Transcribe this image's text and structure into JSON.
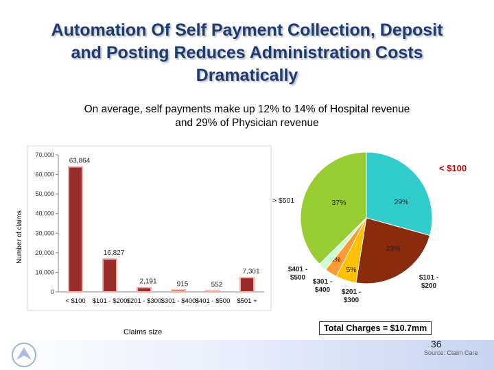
{
  "title_lines": [
    "Automation Of Self Payment Collection, Deposit",
    "and Posting Reduces Administration Costs",
    "Dramatically"
  ],
  "subtitle_lines": [
    "On average, self payments make up 12% to 14% of Hospital revenue",
    "and 29% of Physician revenue"
  ],
  "total_charges": "Total Charges = $10.7mm",
  "page_number": "36",
  "source": "Source: Claim Care",
  "colors": {
    "title": "#1f3b6e",
    "bar": "#9b2c2c",
    "highlight": "#cc0000"
  },
  "chart_data": [
    {
      "type": "bar",
      "categories": [
        "< $100",
        "$101 - $200",
        "$201 - $300",
        "$301 - $400",
        "$401 - $500",
        "$501 +"
      ],
      "values": [
        63864,
        16827,
        2191,
        915,
        552,
        7301
      ],
      "value_labels": [
        "63,864",
        "16,827",
        "2,191",
        "915",
        "552",
        "7,301"
      ],
      "ylabel": "Number of claims",
      "xlabel": "Claims size",
      "ylim": [
        0,
        70000
      ],
      "yticks": [
        0,
        10000,
        20000,
        30000,
        40000,
        50000,
        60000,
        70000
      ],
      "ytick_labels": [
        "0",
        "10,000",
        "20,000",
        "30,000",
        "40,000",
        "50,000",
        "60,000",
        "70,000"
      ],
      "grid": false
    },
    {
      "type": "pie",
      "slices": [
        {
          "label": "< $100",
          "value": 29,
          "pct_label": "29%",
          "color": "#33cccc"
        },
        {
          "label": "$101 - $200",
          "value": 23,
          "pct_label": "23%",
          "color": "#8b2b0e"
        },
        {
          "label": "$201 - $300",
          "value": 5,
          "pct_label": "5%",
          "color": "#ffc000"
        },
        {
          "label": "$301 - $400",
          "value": 3,
          "pct_label": "3%",
          "color": "#ff9933"
        },
        {
          "label": "$401 - $500",
          "value": 2,
          "pct_label": "2%",
          "color": "#ccffcc"
        },
        {
          "label": "> $501",
          "value": 37,
          "pct_label": "37%",
          "color": "#99cc33"
        }
      ]
    }
  ]
}
